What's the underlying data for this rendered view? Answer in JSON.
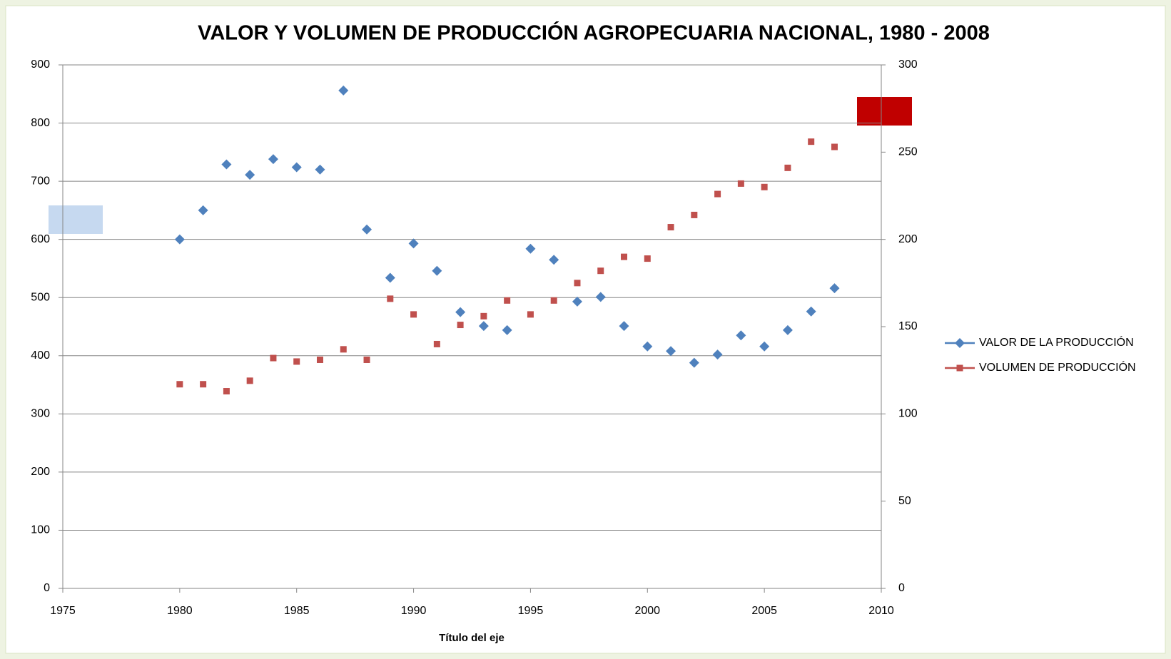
{
  "chart_data": {
    "type": "scatter",
    "title": "VALOR Y VOLUMEN DE PRODUCCIÓN AGROPECUARIA NACIONAL, 1980 - 2008",
    "x_label": "Título del eje",
    "x": [
      1980,
      1981,
      1982,
      1983,
      1984,
      1985,
      1986,
      1987,
      1988,
      1989,
      1990,
      1991,
      1992,
      1993,
      1994,
      1995,
      1996,
      1997,
      1998,
      1999,
      2000,
      2001,
      2002,
      2003,
      2004,
      2005,
      2006,
      2007,
      2008
    ],
    "series": [
      {
        "name": "VALOR DE LA PRODUCCIÓN",
        "color": "#4f81bd",
        "marker": "diamond",
        "values": [
          600,
          650,
          729,
          711,
          738,
          724,
          720,
          856,
          617,
          534,
          593,
          546,
          475,
          451,
          444,
          584,
          565,
          493,
          501,
          451,
          416,
          408,
          388,
          402,
          435,
          416,
          444,
          476,
          516
        ]
      },
      {
        "name": "VOLUMEN DE PRODUCCIÓN",
        "color": "#c0504d",
        "marker": "square",
        "axis": "y2",
        "values": [
          117,
          117,
          113,
          119,
          132,
          130,
          131,
          137,
          131,
          166,
          157,
          140,
          151,
          156,
          165,
          157,
          165,
          175,
          182,
          190,
          189,
          207,
          214,
          226,
          232,
          230,
          241,
          256,
          253
        ]
      }
    ],
    "xlim": [
      1975,
      2010
    ],
    "xticks": [
      1975,
      1980,
      1985,
      1990,
      1995,
      2000,
      2005,
      2010
    ],
    "ylim": [
      0,
      900
    ],
    "yticks": [
      0,
      100,
      200,
      300,
      400,
      500,
      600,
      700,
      800,
      900
    ],
    "y2lim": [
      0,
      300
    ],
    "y2ticks": [
      0,
      50,
      100,
      150,
      200,
      250,
      300
    ],
    "grid": true,
    "legend": "right"
  }
}
